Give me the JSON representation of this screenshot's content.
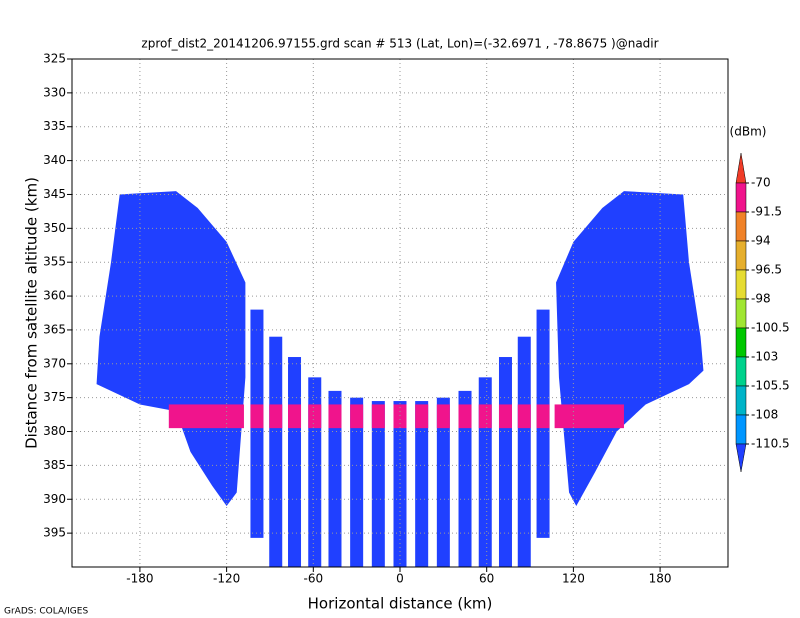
{
  "chart_data": {
    "type": "swath",
    "title": "zprof_dist2_20141206.97155.grd  scan # 513  (Lat, Lon)=(-32.6971 , -78.8675 )@nadir",
    "x_label": "Horizontal distance (km)",
    "y_label": "Distance from satellite altitude (km)",
    "credit": "GrADS: COLA/IGES",
    "xlim": [
      -227,
      227
    ],
    "ylim": [
      325,
      400
    ],
    "xticks": [
      -180,
      -120,
      -60,
      0,
      60,
      120,
      180
    ],
    "yticks": [
      325,
      330,
      335,
      340,
      345,
      350,
      355,
      360,
      365,
      370,
      375,
      380,
      385,
      390,
      395
    ],
    "grid": true,
    "colorbar": {
      "unit": "(dBm)",
      "levels": [
        -70,
        -91.5,
        -94,
        -96.5,
        -98,
        -100.5,
        -103,
        -105.5,
        -108,
        -110.5
      ],
      "colors": [
        "#f03c28",
        "#f0148c",
        "#f08228",
        "#e6af2d",
        "#e6dc32",
        "#a0e632",
        "#00c800",
        "#00d28c",
        "#00b4c8",
        "#0096ff",
        "#2040ff"
      ]
    },
    "swath_color": "#2040ff",
    "layer_color": "#f0148c",
    "wings": [
      {
        "x": [
          -194,
          -155,
          -140,
          -120,
          -107,
          -107,
          -113,
          -120,
          -130,
          -145,
          -155,
          -180,
          -210,
          -208,
          -200
        ],
        "y": [
          345,
          344.5,
          347,
          352,
          358,
          372,
          389,
          391,
          388,
          383,
          377,
          376,
          373,
          366,
          355
        ]
      },
      {
        "x": [
          196,
          155,
          140,
          120,
          108,
          110,
          117,
          122,
          135,
          150,
          170,
          200,
          210,
          208,
          200
        ],
        "y": [
          345,
          344.5,
          347,
          352,
          358,
          372,
          389,
          391,
          386,
          380,
          376,
          373,
          371,
          366,
          355
        ]
      }
    ],
    "stripes": {
      "x": [
        -99,
        -86,
        -73,
        -59,
        -45,
        -30,
        -15,
        0,
        15,
        30,
        45,
        59,
        73,
        86,
        99
      ],
      "top": [
        362,
        366,
        369,
        372,
        374,
        375,
        375.5,
        375.5,
        375.5,
        375,
        374,
        372,
        369,
        366,
        362
      ],
      "bottom": [
        395.7,
        400,
        400,
        400,
        400,
        400,
        400,
        400,
        400,
        400,
        400,
        400,
        400,
        400,
        395.7
      ]
    },
    "layer": {
      "top": 376,
      "bottom": 379.5,
      "x0": [
        -160,
        107
      ],
      "x1": [
        -108,
        155
      ]
    }
  }
}
